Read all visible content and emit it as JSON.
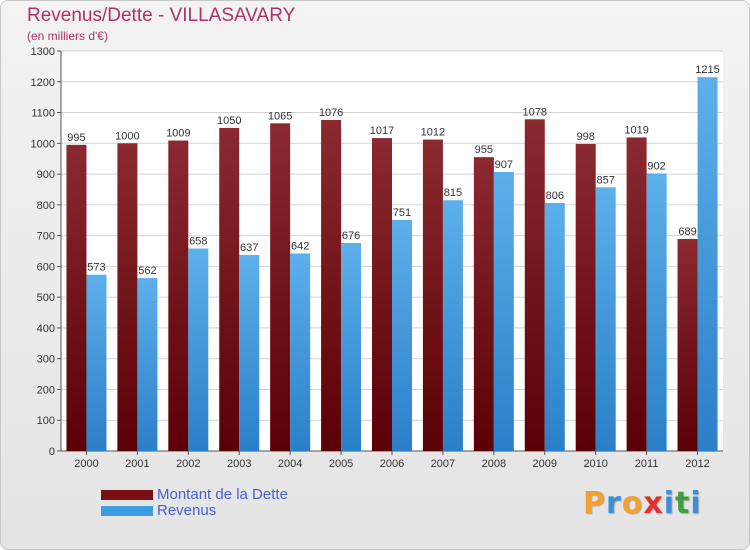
{
  "chart_data": {
    "type": "bar",
    "title": "Revenus/Dette - VILLASAVARY",
    "subtitle": "(en milliers d'€)",
    "categories": [
      "2000",
      "2001",
      "2002",
      "2003",
      "2004",
      "2005",
      "2006",
      "2007",
      "2008",
      "2009",
      "2010",
      "2011",
      "2012"
    ],
    "series": [
      {
        "name": "Montant de la Dette",
        "color": "#7a0f14",
        "values": [
          995,
          1000,
          1009,
          1050,
          1065,
          1076,
          1017,
          1012,
          955,
          1078,
          998,
          1019,
          689
        ]
      },
      {
        "name": "Revenus",
        "color": "#3d9de0",
        "values": [
          573,
          562,
          658,
          637,
          642,
          676,
          751,
          815,
          907,
          806,
          857,
          902,
          1215
        ]
      }
    ],
    "ylim": [
      0,
      1300
    ],
    "yticks": [
      0,
      100,
      200,
      300,
      400,
      500,
      600,
      700,
      800,
      900,
      1000,
      1100,
      1200,
      1300
    ],
    "grid": true,
    "legend_position": "bottom-left"
  },
  "logo": {
    "letters": [
      "P",
      "r",
      "o",
      "x",
      "i",
      "t",
      "i"
    ],
    "colors": [
      "#f0a030",
      "#3a8fd8",
      "#f0a030",
      "#e03030",
      "#3a8fd8",
      "#40a040",
      "#3a8fd8"
    ]
  }
}
